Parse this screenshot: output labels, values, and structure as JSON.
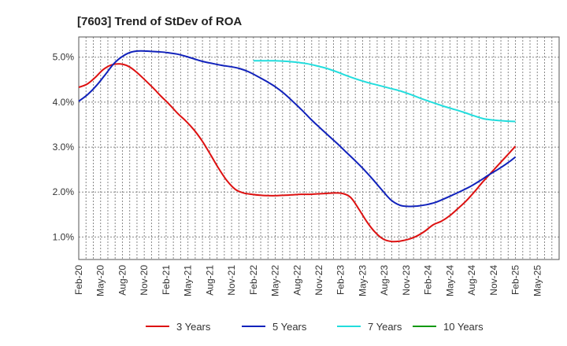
{
  "chart_data": {
    "type": "line",
    "title": "[7603]  Trend of StDev of ROA",
    "xlabel": "",
    "ylabel": "",
    "ylim": [
      0.5,
      5.45
    ],
    "yticks": [
      "1.0%",
      "2.0%",
      "3.0%",
      "4.0%",
      "5.0%"
    ],
    "ytick_values": [
      1.0,
      2.0,
      3.0,
      4.0,
      5.0
    ],
    "x_tick_labels": [
      "Feb-20",
      "May-20",
      "Aug-20",
      "Nov-20",
      "Feb-21",
      "May-21",
      "Aug-21",
      "Nov-21",
      "Feb-22",
      "May-22",
      "Aug-22",
      "Nov-22",
      "Feb-23",
      "May-23",
      "Aug-23",
      "Nov-23",
      "Feb-24",
      "May-24",
      "Aug-24",
      "Nov-24",
      "Feb-25",
      "May-25"
    ],
    "grid": true,
    "legend_position": "bottom",
    "series": [
      {
        "name": "3 Years",
        "color": "#dd1111",
        "values": [
          4.33,
          4.4,
          4.55,
          4.73,
          4.83,
          4.85,
          4.8,
          4.67,
          4.5,
          4.32,
          4.13,
          3.95,
          3.75,
          3.58,
          3.38,
          3.13,
          2.83,
          2.52,
          2.25,
          2.06,
          1.98,
          1.95,
          1.93,
          1.92,
          1.92,
          1.93,
          1.94,
          1.95,
          1.95,
          1.96,
          1.97,
          1.98,
          1.97,
          1.88,
          1.62,
          1.33,
          1.1,
          0.95,
          0.9,
          0.91,
          0.95,
          1.02,
          1.13,
          1.27,
          1.35,
          1.47,
          1.63,
          1.8,
          2.0,
          2.22,
          2.42,
          2.62,
          2.82,
          3.02
        ]
      },
      {
        "name": "5 Years",
        "color": "#1122bb",
        "values": [
          4.02,
          4.17,
          4.37,
          4.62,
          4.87,
          5.03,
          5.12,
          5.14,
          5.13,
          5.12,
          5.1,
          5.07,
          5.02,
          4.96,
          4.9,
          4.86,
          4.82,
          4.79,
          4.75,
          4.68,
          4.58,
          4.47,
          4.35,
          4.2,
          4.02,
          3.83,
          3.63,
          3.44,
          3.26,
          3.08,
          2.89,
          2.7,
          2.5,
          2.28,
          2.05,
          1.83,
          1.71,
          1.68,
          1.69,
          1.72,
          1.77,
          1.85,
          1.94,
          2.03,
          2.13,
          2.25,
          2.38,
          2.5,
          2.63,
          2.78
        ]
      },
      {
        "name": "7 Years",
        "color": "#22dddd",
        "values": [
          4.92,
          4.92,
          4.92,
          4.91,
          4.89,
          4.86,
          4.81,
          4.75,
          4.67,
          4.58,
          4.5,
          4.43,
          4.37,
          4.31,
          4.25,
          4.17,
          4.08,
          4.0,
          3.92,
          3.85,
          3.78,
          3.7,
          3.63,
          3.6,
          3.58,
          3.57
        ]
      },
      {
        "name": "10 Years",
        "color": "#119911",
        "values": []
      }
    ]
  }
}
